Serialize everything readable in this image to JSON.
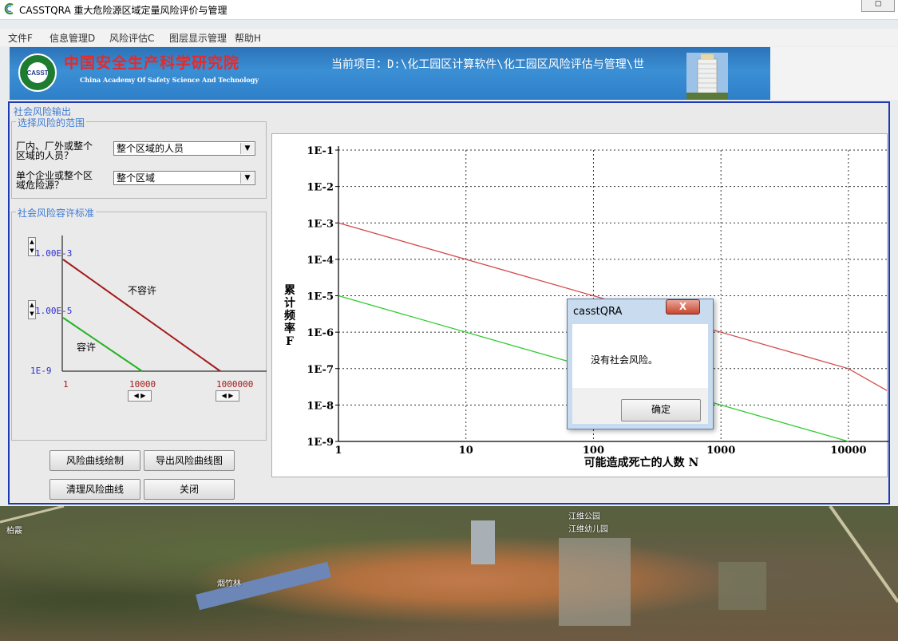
{
  "window": {
    "title": "CASSTQRA 重大危险源区域定量风险评价与管理"
  },
  "menu": [
    "文件F",
    "信息管理D",
    "风险评估C",
    "图层显示管理",
    "帮助H"
  ],
  "banner": {
    "logo_text": "CASST",
    "cn_name": "中国安全生产科学研究院",
    "en_name": "China Academy Of Safety Science And Technology",
    "project_path": "当前项目：D:\\化工园区计算软件\\化工园区风险评估与管理\\世"
  },
  "panel": {
    "title": "社会风险输出",
    "scope_group": {
      "title": "选择风险的范围",
      "q1_label": "厂内、厂外或整个区域的人员？",
      "q1_label_line1": "厂内、厂外或整个",
      "q1_label_line2": "区域的人员？",
      "q1_value": "整个区域的人员",
      "q2_label_line1": "单个企业或整个区",
      "q2_label_line2": "域危险源？",
      "q2_value": "整个区域"
    },
    "criteria_group": {
      "title": "社会风险容许标准",
      "upper_value": "1.00E-3",
      "lower_value": "1.00E-5",
      "y_min": "1E-9",
      "x_left": "1",
      "x_mid": "10000",
      "x_right": "1000000",
      "label_not_allowed": "不容许",
      "label_allowed": "容许"
    },
    "buttons": {
      "draw": "风险曲线绘制",
      "export": "导出风险曲线图",
      "clear": "清理风险曲线",
      "close": "关闭"
    }
  },
  "chart_data": {
    "type": "line",
    "xlabel": "可能造成死亡的人数 N",
    "ylabel": "累计频率F",
    "x_scale": "log",
    "y_scale": "log",
    "xlim": [
      1,
      20000
    ],
    "ylim": [
      1e-09,
      0.1
    ],
    "x_ticks": [
      "1",
      "10",
      "100",
      "1000",
      "10000"
    ],
    "y_ticks": [
      "1E-1",
      "1E-2",
      "1E-3",
      "1E-4",
      "1E-5",
      "1E-6",
      "1E-7",
      "1E-8",
      "1E-9"
    ],
    "grid": true,
    "series": [
      {
        "color": "#d44a4a",
        "x": [
          1,
          10000,
          20000
        ],
        "y": [
          0.001,
          1e-07,
          2.5e-08
        ]
      },
      {
        "color": "#33cc33",
        "x": [
          1,
          10000
        ],
        "y": [
          1e-05,
          1e-09
        ]
      }
    ]
  },
  "dialog": {
    "title": "casstQRA",
    "close_symbol": "X",
    "message": "没有社会风险。",
    "ok_label": "确定"
  },
  "map": {
    "labels": [
      "柏霰",
      "烟竹林",
      "江维公园",
      "江维幼儿园"
    ]
  }
}
